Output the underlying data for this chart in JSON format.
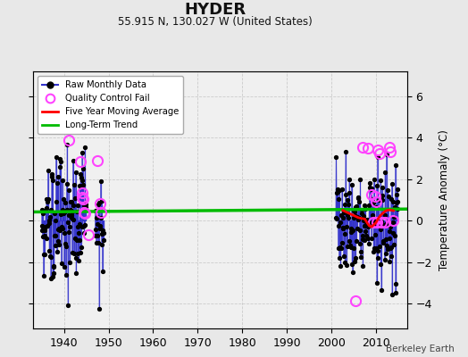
{
  "title": "HYDER",
  "subtitle": "55.915 N, 130.027 W (United States)",
  "credit": "Berkeley Earth",
  "ylabel": "Temperature Anomaly (°C)",
  "xlim": [
    1933,
    2017
  ],
  "ylim": [
    -5.2,
    7.2
  ],
  "yticks": [
    -4,
    -2,
    0,
    2,
    4,
    6
  ],
  "xticks": [
    1940,
    1950,
    1960,
    1970,
    1980,
    1990,
    2000,
    2010
  ],
  "bg_color": "#e8e8e8",
  "plot_bg_color": "#f0f0f0",
  "grid_color": "#cccccc",
  "line_color": "#3333cc",
  "dot_color": "#000000",
  "qc_color": "#ff44ff",
  "moving_avg_color": "#ff0000",
  "trend_color": "#00bb00",
  "trend_x": [
    1933,
    2017
  ],
  "trend_y": [
    0.42,
    0.56
  ],
  "early_raw": {
    "years_range": [
      1935,
      1948
    ],
    "excluded": [
      1946
    ],
    "seed": 15
  },
  "late_raw": {
    "years_range": [
      2001,
      2014
    ],
    "seed": 88
  },
  "qc_early": [
    [
      1941.0,
      3.9
    ],
    [
      1943.75,
      2.85
    ],
    [
      1944.0,
      1.35
    ],
    [
      1944.17,
      1.15
    ],
    [
      1944.33,
      1.05
    ],
    [
      1944.5,
      0.38
    ],
    [
      1944.67,
      0.35
    ],
    [
      1945.5,
      -0.68
    ],
    [
      1947.5,
      2.88
    ],
    [
      1948.0,
      0.82
    ],
    [
      1948.33,
      0.38
    ]
  ],
  "qc_late": [
    [
      2005.5,
      -3.85
    ],
    [
      2007.0,
      3.55
    ],
    [
      2008.25,
      3.5
    ],
    [
      2009.0,
      1.25
    ],
    [
      2009.5,
      -0.08
    ],
    [
      2009.75,
      1.18
    ],
    [
      2010.0,
      0.92
    ],
    [
      2010.25,
      -0.08
    ],
    [
      2010.5,
      3.4
    ],
    [
      2010.75,
      3.25
    ],
    [
      2011.25,
      -0.08
    ],
    [
      2012.0,
      -0.08
    ],
    [
      2013.0,
      3.52
    ],
    [
      2013.25,
      3.32
    ],
    [
      2013.83,
      0.0
    ]
  ],
  "moving_avg_x": [
    2002.5,
    2003.0,
    2003.5,
    2004.0,
    2004.5,
    2005.0,
    2005.5,
    2006.0,
    2006.5,
    2007.0,
    2007.5,
    2008.0,
    2008.5,
    2009.0,
    2009.5,
    2010.0,
    2010.5,
    2011.0,
    2011.5,
    2012.0,
    2012.5,
    2013.0,
    2013.5,
    2014.0
  ],
  "moving_avg_y": [
    0.5,
    0.45,
    0.4,
    0.35,
    0.3,
    0.25,
    0.2,
    0.15,
    0.12,
    0.1,
    0.08,
    -0.1,
    -0.25,
    -0.3,
    -0.2,
    -0.1,
    0.1,
    0.25,
    0.35,
    0.45,
    0.5,
    0.52,
    0.5,
    0.48
  ]
}
